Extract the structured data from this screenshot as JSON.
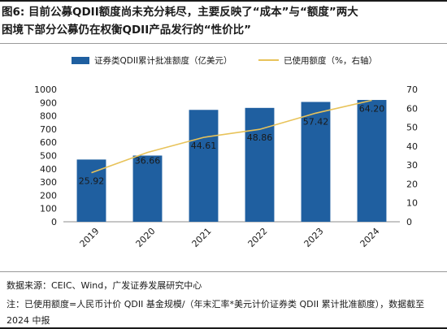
{
  "header": {
    "title_line1": "图6:  目前公募QDII额度尚未充分耗尽，主要反映了“成本”与“额度”两大",
    "title_line2": "困境下部分公募仍在权衡QDII产品发行的“性价比”"
  },
  "footer": {
    "source": "数据来源：CEIC、Wind，广发证券发展研究中心",
    "note": "注：已使用额度=人民币计价 QDII 基金规模/（年末汇率*美元计价证券类 QDII 累计批准额度），数据截至 2024 中报"
  },
  "chart_data": {
    "type": "bar",
    "categories": [
      "2019",
      "2020",
      "2021",
      "2022",
      "2023",
      "2024"
    ],
    "series": [
      {
        "name": "证券类QDII累计批准额度（亿美元）",
        "type": "bar",
        "axis": "left",
        "color": "#1f5fa0",
        "values": [
          470,
          500,
          845,
          860,
          905,
          920
        ]
      },
      {
        "name": "已使用额度（%，右轴）",
        "type": "line",
        "axis": "right",
        "color": "#e8c35a",
        "values": [
          25.92,
          36.66,
          44.61,
          48.86,
          57.42,
          64.2
        ],
        "labels": [
          "25.92",
          "36.66",
          "44.61",
          "48.86",
          "57.42",
          "64.20"
        ]
      }
    ],
    "y_left": {
      "ylim": [
        0,
        1000
      ],
      "ticks": [
        "0",
        "100",
        "200",
        "300",
        "400",
        "500",
        "600",
        "700",
        "800",
        "900",
        "1000"
      ]
    },
    "y_right": {
      "ylim": [
        0,
        70
      ],
      "ticks": [
        "0",
        "10",
        "20",
        "30",
        "40",
        "50",
        "60",
        "70"
      ]
    },
    "legend_position": "top",
    "grid": false
  }
}
